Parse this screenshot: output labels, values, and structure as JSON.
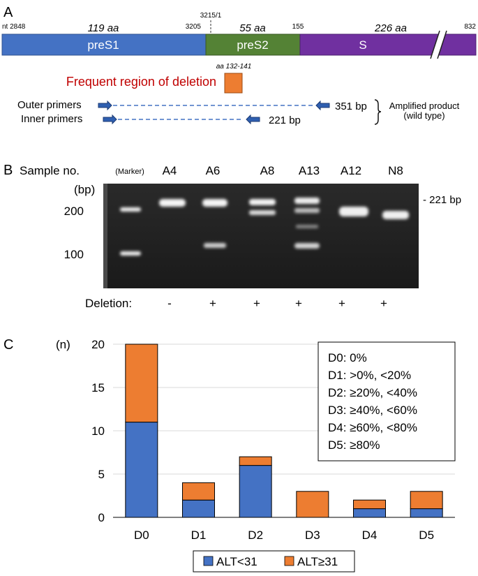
{
  "panelA": {
    "label": "A",
    "segments": [
      {
        "name": "preS1",
        "aa": "119 aa",
        "color": "#4472c4"
      },
      {
        "name": "preS2",
        "aa": "55 aa",
        "color": "#548235"
      },
      {
        "name": "S",
        "aa": "226 aa",
        "color": "#7030a0"
      }
    ],
    "nt_labels": {
      "start": "nt 2848",
      "preS1_end": "3205",
      "junction": "3215/1",
      "preS2_end": "155",
      "end": "832"
    },
    "deletion_aa": "aa 132-141",
    "deletion_label": "Frequent region of deletion",
    "deletion_color": "#ed7d31",
    "outer_label": "Outer primers",
    "inner_label": "Inner primers",
    "outer_size": "351 bp",
    "inner_size": "221 bp",
    "amplified_line1": "Amplified product",
    "amplified_line2": "(wild type)"
  },
  "panelB": {
    "label": "B",
    "sample_header": "Sample no.",
    "marker_label": "(Marker)",
    "lanes": [
      {
        "name": "A4",
        "deletion": "-"
      },
      {
        "name": "A6",
        "deletion": "+"
      },
      {
        "name": "A8",
        "deletion": "+"
      },
      {
        "name": "A13",
        "deletion": "+"
      },
      {
        "name": "A12",
        "deletion": "+"
      },
      {
        "name": "N8",
        "deletion": "+"
      }
    ],
    "bp_unit": "(bp)",
    "ladder": [
      "200",
      "100"
    ],
    "band_label": "- 221 bp",
    "deletion_row_label": "Deletion:"
  },
  "panelC": {
    "label": "C",
    "chart_data": {
      "type": "bar",
      "stacked": true,
      "categories": [
        "D0",
        "D1",
        "D2",
        "D3",
        "D4",
        "D5"
      ],
      "series": [
        {
          "name": "ALT<31",
          "values": [
            11,
            2,
            6,
            0,
            1,
            1
          ],
          "color": "#4472c4"
        },
        {
          "name": "ALT≥31",
          "values": [
            9,
            2,
            1,
            3,
            1,
            2
          ],
          "color": "#ed7d31"
        }
      ],
      "ylabel": "(n)",
      "ylim": [
        0,
        20
      ],
      "yticks": [
        "0",
        "5",
        "10",
        "15",
        "20"
      ],
      "grid": true,
      "legend_position": "bottom",
      "annotation": [
        "D0: 0%",
        "D1: >0%, <20%",
        "D2: ≥20%, <40%",
        "D3: ≥40%, <60%",
        "D4: ≥60%, <80%",
        "D5: ≥80%"
      ]
    }
  }
}
